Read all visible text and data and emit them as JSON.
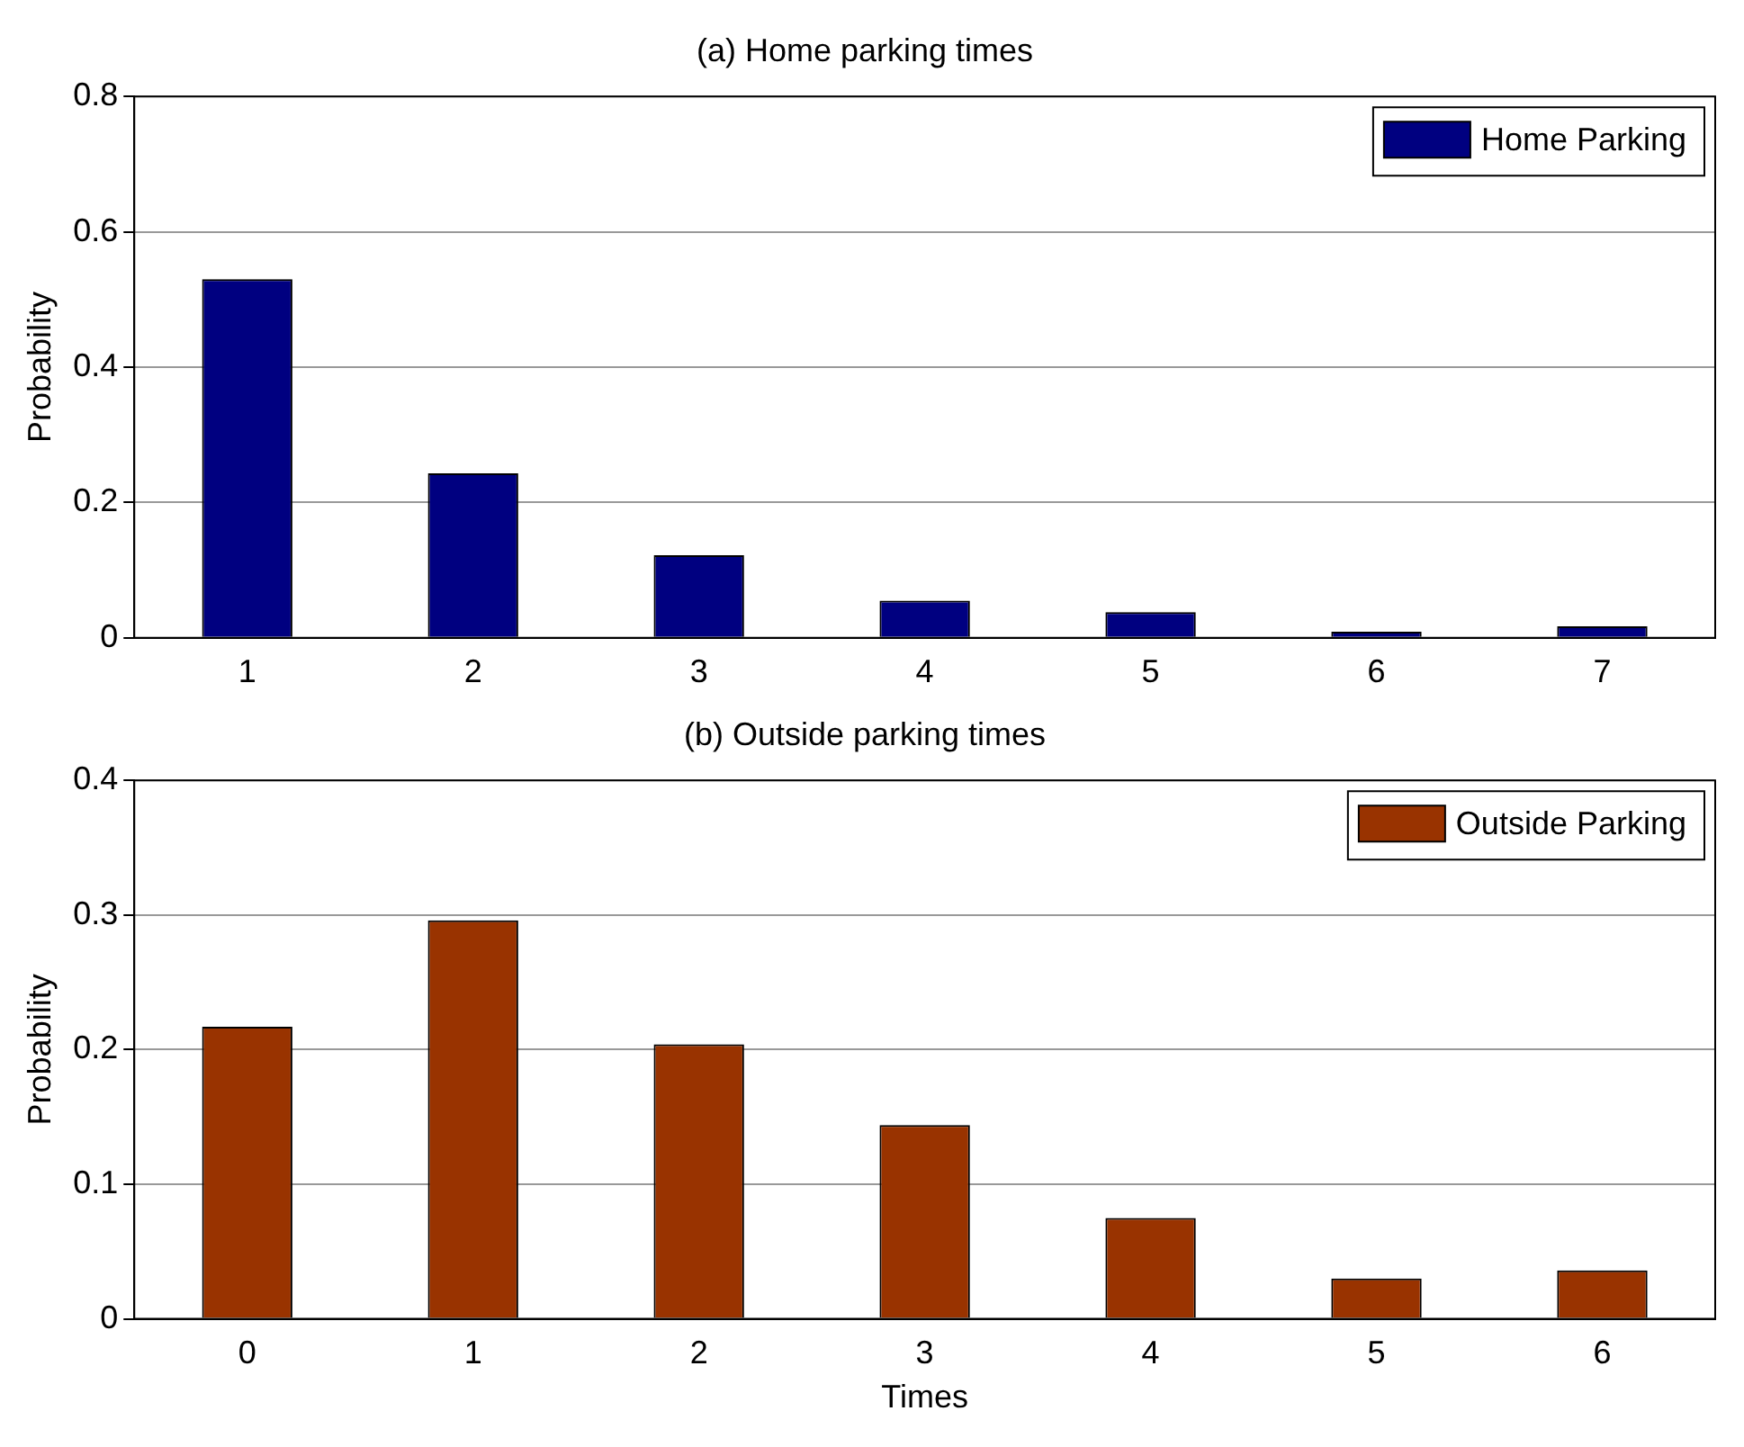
{
  "chart_data": [
    {
      "type": "bar",
      "title": "(a) Home parking times",
      "ylabel": "Probability",
      "categories": [
        "1",
        "2",
        "3",
        "4",
        "5",
        "6",
        "7"
      ],
      "series": [
        {
          "name": "Home Parking",
          "color": "#000080",
          "values": [
            0.53,
            0.243,
            0.122,
            0.055,
            0.038,
            0.009,
            0.017
          ]
        }
      ],
      "ylim": [
        0,
        0.8
      ],
      "yticks": [
        0,
        0.2,
        0.4,
        0.6,
        0.8
      ],
      "grid": "y",
      "legend": "top right"
    },
    {
      "type": "bar",
      "title": "(b) Outside parking times",
      "xlabel": "Times",
      "ylabel": "Probability",
      "categories": [
        "0",
        "1",
        "2",
        "3",
        "4",
        "5",
        "6"
      ],
      "series": [
        {
          "name": "Outside Parking",
          "color": "#993300",
          "values": [
            0.217,
            0.296,
            0.204,
            0.144,
            0.075,
            0.03,
            0.036
          ]
        }
      ],
      "ylim": [
        0,
        0.4
      ],
      "yticks": [
        0,
        0.1,
        0.2,
        0.3,
        0.4
      ],
      "grid": "y",
      "legend": "top right"
    }
  ]
}
